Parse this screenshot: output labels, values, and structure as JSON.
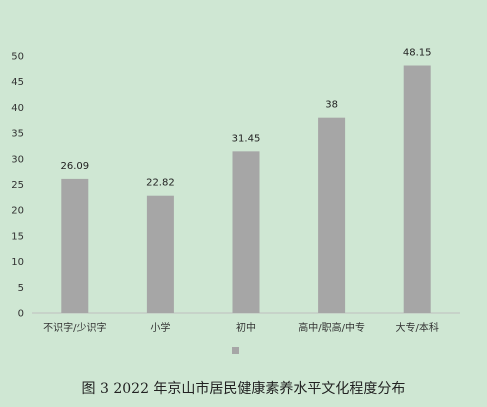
{
  "caption": "图 3  2022 年京山市居民健康素养水平文化程度分布",
  "colors": {
    "background": "#cfe7d3",
    "bar": "#a6a6a6",
    "axis": "#bfbfbf",
    "text": "#333333"
  },
  "chart_data": {
    "type": "bar",
    "categories": [
      "不识字/少识字",
      "小学",
      "初中",
      "高中/职高/中专",
      "大专/本科"
    ],
    "values": [
      26.09,
      22.82,
      31.45,
      38,
      48.15
    ],
    "value_labels": [
      "26.09",
      "22.82",
      "31.45",
      "38",
      "48.15"
    ],
    "y_ticks": [
      "0",
      "5",
      "10",
      "15",
      "20",
      "25",
      "30",
      "35",
      "40",
      "45",
      "50"
    ],
    "ylim": [
      0,
      50
    ],
    "title": "",
    "xlabel": "",
    "ylabel": "",
    "grid": false,
    "legend_placement": "bottom"
  }
}
